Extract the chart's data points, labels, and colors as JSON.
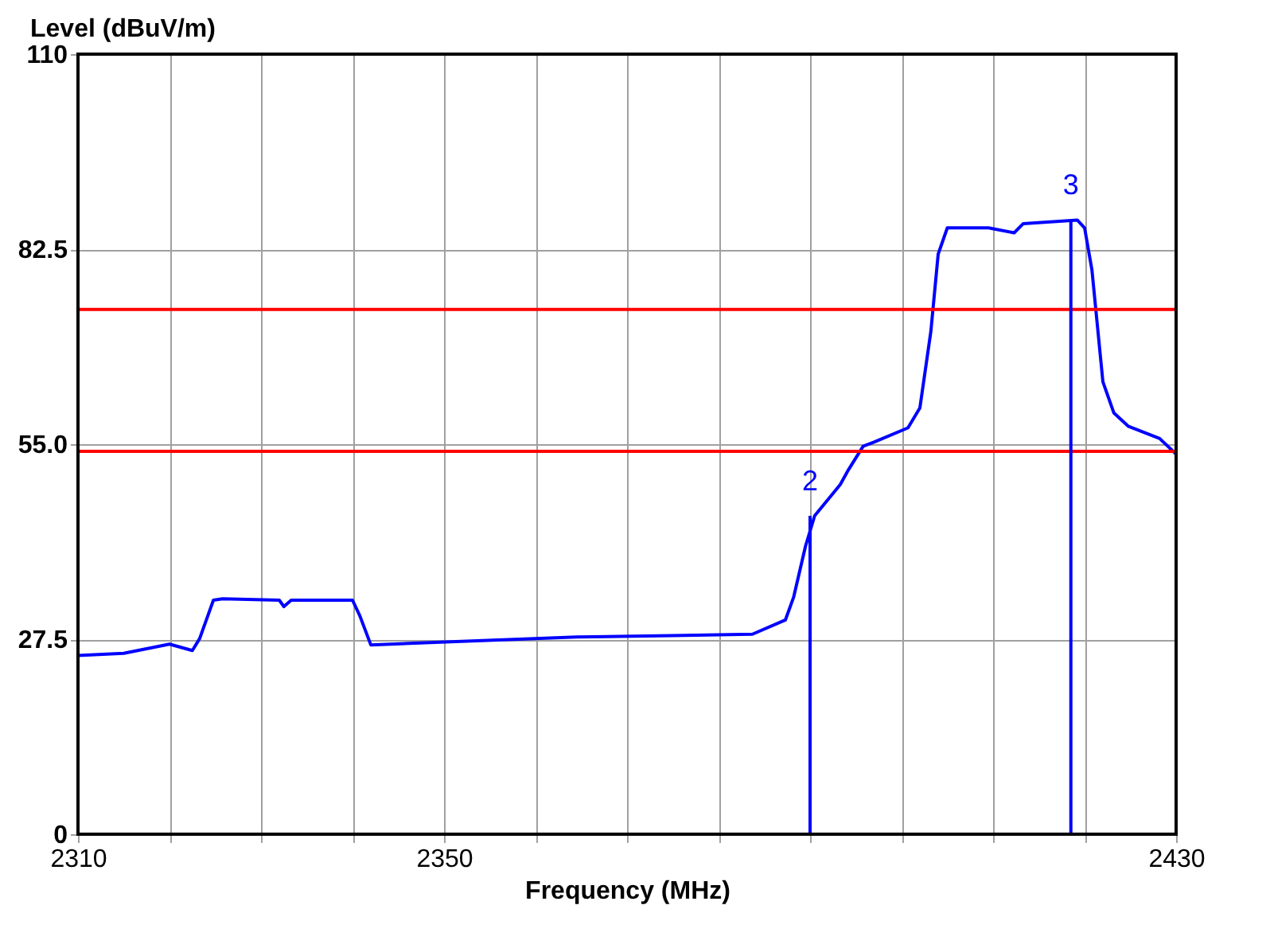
{
  "chart_data": {
    "type": "line",
    "xlabel": "Frequency (MHz)",
    "ylabel": "Level (dBuV/m)",
    "xlim": [
      2310,
      2430
    ],
    "ylim": [
      0,
      110
    ],
    "xticks": [
      2310,
      {
        "value": 2320,
        "label": null
      },
      {
        "value": 2330,
        "label": null
      },
      {
        "value": 2340,
        "label": null
      },
      2350,
      {
        "value": 2360,
        "label": null
      },
      {
        "value": 2370,
        "label": null
      },
      {
        "value": 2380,
        "label": null
      },
      {
        "value": 2390,
        "label": null
      },
      {
        "value": 2400,
        "label": null
      },
      {
        "value": 2410,
        "label": null
      },
      {
        "value": 2420,
        "label": null
      },
      2430
    ],
    "yticks": [
      0,
      27.5,
      {
        "value": 55,
        "label": "55.0"
      },
      82.5,
      110
    ],
    "grid": true,
    "marker": "none",
    "line_style": "solid",
    "series": [
      {
        "color": "#0000ff",
        "x": [
          2310,
          2315,
          2320,
          2322.5,
          2323.3,
          2324.8,
          2325.8,
          2332,
          2332.5,
          2333.3,
          2340,
          2340.8,
          2342,
          2354.2,
          2364.5,
          2375,
          2383.7,
          2387.3,
          2388.2,
          2389.5,
          2390.5,
          2393.3,
          2394.2,
          2395.8,
          2397,
          2400.7,
          2402,
          2403.2,
          2404,
          2405,
          2409.5,
          2412.3,
          2413.3,
          2419.2,
          2420,
          2420.8,
          2422,
          2423.2,
          2424.8,
          2428.2,
          2430
        ],
        "values": [
          25.2,
          25.5,
          26.8,
          25.9,
          27.6,
          33.0,
          33.2,
          33.0,
          32.1,
          33.0,
          33.0,
          30.8,
          26.7,
          27.3,
          27.8,
          28.0,
          28.2,
          30.2,
          33.4,
          40.6,
          44.9,
          49.3,
          51.4,
          54.7,
          55.3,
          57.3,
          60.1,
          70.9,
          81.8,
          85.5,
          85.5,
          84.8,
          86.1,
          86.6,
          85.5,
          79.6,
          63.8,
          59.4,
          57.5,
          55.8,
          53.6
        ]
      }
    ],
    "ref_lines": [
      {
        "axis": "y",
        "value": 74,
        "color": "#ff0000"
      },
      {
        "axis": "y",
        "value": 54,
        "color": "#ff0000"
      }
    ],
    "annotations": [
      {
        "text": "2",
        "x": 2390,
        "y": 44.9
      },
      {
        "text": "3",
        "x": 2418.5,
        "y": 86.6
      }
    ]
  }
}
